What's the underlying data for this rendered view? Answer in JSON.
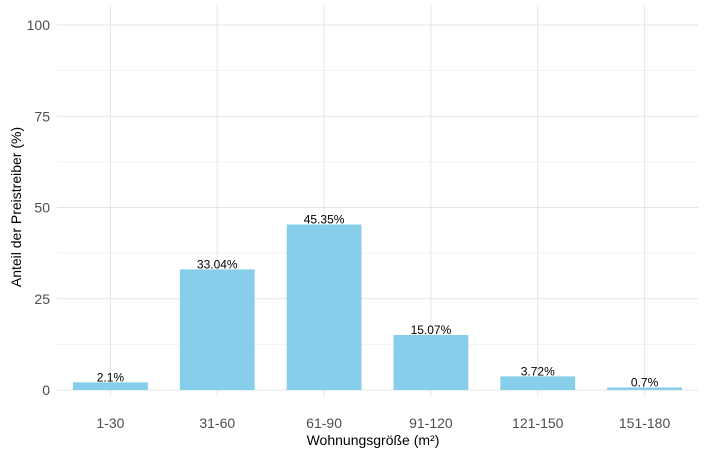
{
  "chart_data": {
    "type": "bar",
    "title": "",
    "xlabel": "Wohnungsgröße (m²)",
    "ylabel": "Anteil der Preistreiber (%)",
    "categories": [
      "1-30",
      "31-60",
      "61-90",
      "91-120",
      "121-150",
      "151-180"
    ],
    "values": [
      2.1,
      33.04,
      45.35,
      15.07,
      3.72,
      0.7
    ],
    "data_labels": [
      "2.1%",
      "33.04%",
      "45.35%",
      "15.07%",
      "3.72%",
      "0.7%"
    ],
    "ylim": [
      0,
      100
    ],
    "yticks": [
      0,
      25,
      50,
      75,
      100
    ],
    "grid": true,
    "legend": "none",
    "bar_color": "#87CEEB"
  }
}
